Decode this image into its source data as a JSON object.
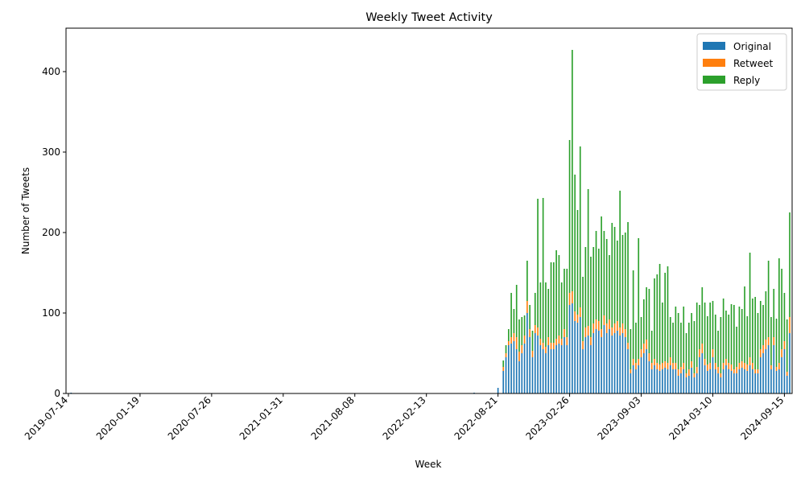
{
  "chart_data": {
    "type": "bar",
    "stacked": true,
    "title": "Weekly Tweet Activity",
    "xlabel": "Week",
    "ylabel": "Number of Tweets",
    "ylim": [
      0,
      450
    ],
    "yticks": [
      0,
      100,
      200,
      300,
      400
    ],
    "xticklabels": [
      "2019-07-14",
      "2020-01-19",
      "2020-07-26",
      "2021-01-31",
      "2021-08-08",
      "2022-02-13",
      "2022-08-21",
      "2023-02-26",
      "2023-09-03",
      "2024-03-10",
      "2024-09-15"
    ],
    "xlim": [
      "2019-07-14",
      "2024-09-29"
    ],
    "grid": false,
    "legend": "top-right",
    "colors": {
      "Original": "#1f77b4",
      "Retweet": "#ff7f0e",
      "Reply": "#2ca02c"
    },
    "x": [
      "2019-07-21",
      "2022-06-19",
      "2022-08-21",
      "2022-09-04",
      "2022-09-11",
      "2022-09-18",
      "2022-09-25",
      "2022-10-02",
      "2022-10-09",
      "2022-10-16",
      "2022-10-23",
      "2022-10-30",
      "2022-11-06",
      "2022-11-13",
      "2022-11-20",
      "2022-11-27",
      "2022-12-04",
      "2022-12-11",
      "2022-12-18",
      "2022-12-25",
      "2023-01-01",
      "2023-01-08",
      "2023-01-15",
      "2023-01-22",
      "2023-01-29",
      "2023-02-05",
      "2023-02-12",
      "2023-02-19",
      "2023-02-26",
      "2023-03-05",
      "2023-03-12",
      "2023-03-19",
      "2023-03-26",
      "2023-04-02",
      "2023-04-09",
      "2023-04-16",
      "2023-04-23",
      "2023-04-30",
      "2023-05-07",
      "2023-05-14",
      "2023-05-21",
      "2023-05-28",
      "2023-06-04",
      "2023-06-11",
      "2023-06-18",
      "2023-06-25",
      "2023-07-02",
      "2023-07-09",
      "2023-07-16",
      "2023-07-23",
      "2023-07-30",
      "2023-08-06",
      "2023-08-13",
      "2023-08-20",
      "2023-08-27",
      "2023-09-03",
      "2023-09-10",
      "2023-09-17",
      "2023-09-24",
      "2023-10-01",
      "2023-10-08",
      "2023-10-15",
      "2023-10-22",
      "2023-10-29",
      "2023-11-05",
      "2023-11-12",
      "2023-11-19",
      "2023-11-26",
      "2023-12-03",
      "2023-12-10",
      "2023-12-17",
      "2023-12-24",
      "2023-12-31",
      "2024-01-07",
      "2024-01-14",
      "2024-01-21",
      "2024-01-28",
      "2024-02-04",
      "2024-02-11",
      "2024-02-18",
      "2024-02-25",
      "2024-03-03",
      "2024-03-10",
      "2024-03-17",
      "2024-03-24",
      "2024-03-31",
      "2024-04-07",
      "2024-04-14",
      "2024-04-21",
      "2024-04-28",
      "2024-05-05",
      "2024-05-12",
      "2024-05-19",
      "2024-05-26",
      "2024-06-02",
      "2024-06-09",
      "2024-06-16",
      "2024-06-23",
      "2024-06-30",
      "2024-07-07",
      "2024-07-14",
      "2024-07-21",
      "2024-07-28",
      "2024-08-04",
      "2024-08-11",
      "2024-08-18",
      "2024-08-25",
      "2024-09-01",
      "2024-09-08",
      "2024-09-15",
      "2024-09-22",
      "2024-09-29"
    ],
    "series": [
      {
        "name": "Original",
        "values": [
          1,
          1,
          7,
          28,
          45,
          60,
          62,
          65,
          55,
          40,
          50,
          62,
          100,
          70,
          45,
          75,
          72,
          60,
          55,
          50,
          60,
          55,
          55,
          60,
          62,
          60,
          70,
          60,
          110,
          112,
          90,
          88,
          95,
          55,
          70,
          72,
          60,
          75,
          80,
          78,
          70,
          85,
          75,
          80,
          72,
          75,
          78,
          72,
          75,
          70,
          55,
          25,
          35,
          30,
          35,
          45,
          50,
          55,
          40,
          30,
          35,
          30,
          28,
          30,
          32,
          30,
          35,
          30,
          30,
          22,
          25,
          30,
          20,
          22,
          32,
          20,
          25,
          45,
          50,
          35,
          28,
          30,
          45,
          30,
          25,
          20,
          30,
          35,
          30,
          28,
          25,
          25,
          30,
          32,
          30,
          28,
          35,
          30,
          25,
          25,
          45,
          50,
          55,
          60,
          30,
          60,
          28,
          30,
          45,
          55,
          22,
          75
        ]
      },
      {
        "name": "Retweet",
        "values": [
          0,
          0,
          0,
          5,
          5,
          5,
          8,
          10,
          15,
          12,
          10,
          10,
          15,
          10,
          8,
          10,
          10,
          8,
          8,
          8,
          10,
          8,
          8,
          8,
          10,
          8,
          10,
          10,
          15,
          15,
          12,
          10,
          12,
          10,
          12,
          12,
          10,
          12,
          12,
          12,
          10,
          12,
          12,
          12,
          10,
          12,
          12,
          10,
          12,
          10,
          8,
          5,
          8,
          8,
          8,
          10,
          12,
          12,
          10,
          8,
          8,
          8,
          8,
          8,
          8,
          8,
          10,
          8,
          8,
          8,
          8,
          8,
          5,
          8,
          8,
          5,
          8,
          10,
          12,
          8,
          8,
          8,
          10,
          8,
          8,
          5,
          8,
          8,
          8,
          8,
          5,
          8,
          8,
          8,
          8,
          8,
          10,
          8,
          5,
          5,
          10,
          10,
          12,
          10,
          5,
          10,
          5,
          8,
          10,
          10,
          5,
          20
        ]
      },
      {
        "name": "Reply",
        "values": [
          0,
          0,
          0,
          8,
          10,
          15,
          55,
          30,
          65,
          40,
          35,
          25,
          50,
          30,
          25,
          40,
          160,
          70,
          180,
          80,
          60,
          100,
          100,
          110,
          100,
          70,
          75,
          85,
          190,
          300,
          170,
          130,
          200,
          80,
          100,
          170,
          100,
          95,
          110,
          90,
          140,
          105,
          105,
          80,
          130,
          120,
          100,
          170,
          110,
          120,
          150,
          50,
          110,
          50,
          150,
          40,
          55,
          65,
          80,
          40,
          100,
          110,
          125,
          75,
          110,
          120,
          50,
          50,
          70,
          70,
          55,
          70,
          50,
          58,
          60,
          65,
          80,
          55,
          70,
          70,
          60,
          75,
          60,
          60,
          45,
          70,
          80,
          60,
          60,
          75,
          80,
          50,
          70,
          65,
          95,
          60,
          130,
          80,
          90,
          70,
          60,
          50,
          60,
          95,
          60,
          60,
          60,
          130,
          100,
          60,
          65,
          130
        ]
      }
    ]
  }
}
